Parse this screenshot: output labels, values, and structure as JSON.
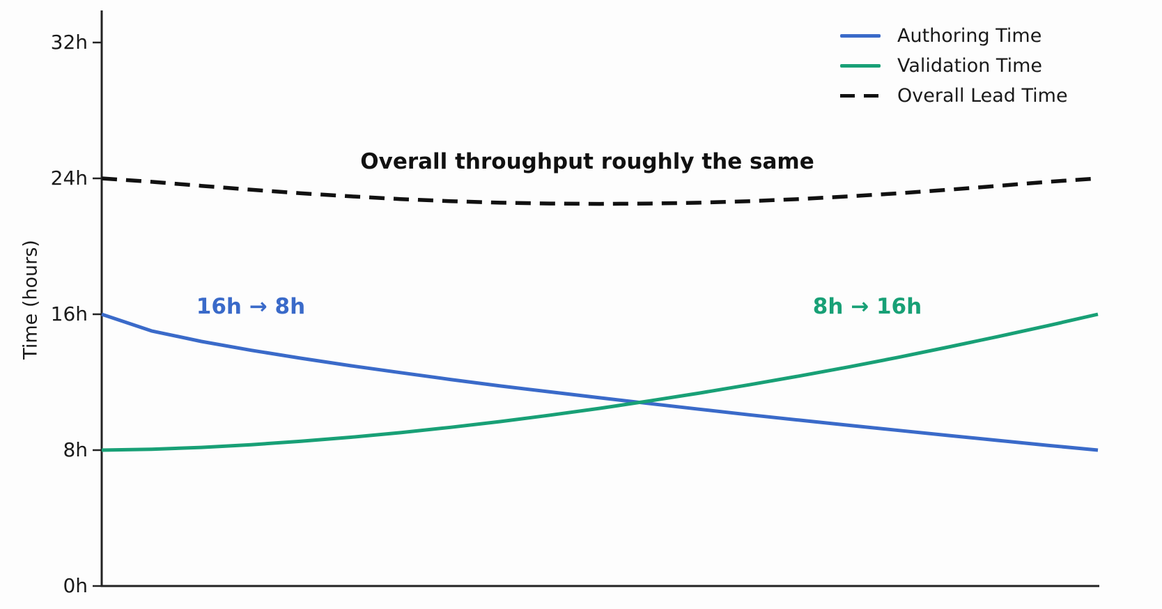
{
  "chart_data": {
    "type": "line",
    "ylabel": "Time (hours)",
    "ylim": [
      0,
      32
    ],
    "ytick_values": [
      0,
      8,
      16,
      24,
      32
    ],
    "ytick_labels": [
      "0h",
      "8h",
      "16h",
      "24h",
      "32h"
    ],
    "xlabel": "",
    "x_ticks_visible": false,
    "grid": false,
    "legend_position": "upper right",
    "axis_color": "#222222",
    "background": "#fdfdfd",
    "x": [
      0,
      0.05,
      0.1,
      0.15,
      0.2,
      0.25,
      0.3,
      0.35,
      0.4,
      0.45,
      0.5,
      0.55,
      0.6,
      0.65,
      0.7,
      0.75,
      0.8,
      0.85,
      0.9,
      0.95,
      1
    ],
    "series": [
      {
        "name": "Authoring Time",
        "color": "#3a6ac9",
        "style": "solid",
        "start_value_hours": 16,
        "end_value_hours": 8,
        "values": [
          16,
          15.02,
          14.4,
          13.88,
          13.41,
          12.97,
          12.56,
          12.16,
          11.78,
          11.43,
          11.08,
          10.74,
          10.41,
          10.08,
          9.77,
          9.46,
          9.16,
          8.86,
          8.57,
          8.28,
          8
        ]
      },
      {
        "name": "Validation Time",
        "color": "#18a076",
        "style": "solid",
        "start_value_hours": 8,
        "end_value_hours": 16,
        "values": [
          8,
          8.05,
          8.16,
          8.32,
          8.52,
          8.76,
          9.03,
          9.34,
          9.68,
          10.06,
          10.46,
          10.9,
          11.36,
          11.85,
          12.36,
          12.9,
          13.47,
          14.07,
          14.69,
          15.33,
          16
        ]
      },
      {
        "name": "Overall Lead Time",
        "color": "#111111",
        "style": "dashed",
        "start_value_hours": 24,
        "end_value_hours": 24,
        "values": [
          24,
          23.8,
          23.56,
          23.33,
          23.12,
          22.94,
          22.78,
          22.66,
          22.57,
          22.52,
          22.5,
          22.52,
          22.57,
          22.66,
          22.78,
          22.94,
          23.12,
          23.33,
          23.56,
          23.8,
          24
        ]
      }
    ],
    "annotations": [
      {
        "text": "Overall throughput roughly the same",
        "color": "#111111"
      },
      {
        "text": "16h → 8h",
        "color": "#3a6ac9"
      },
      {
        "text": "8h → 16h",
        "color": "#18a076"
      }
    ]
  }
}
